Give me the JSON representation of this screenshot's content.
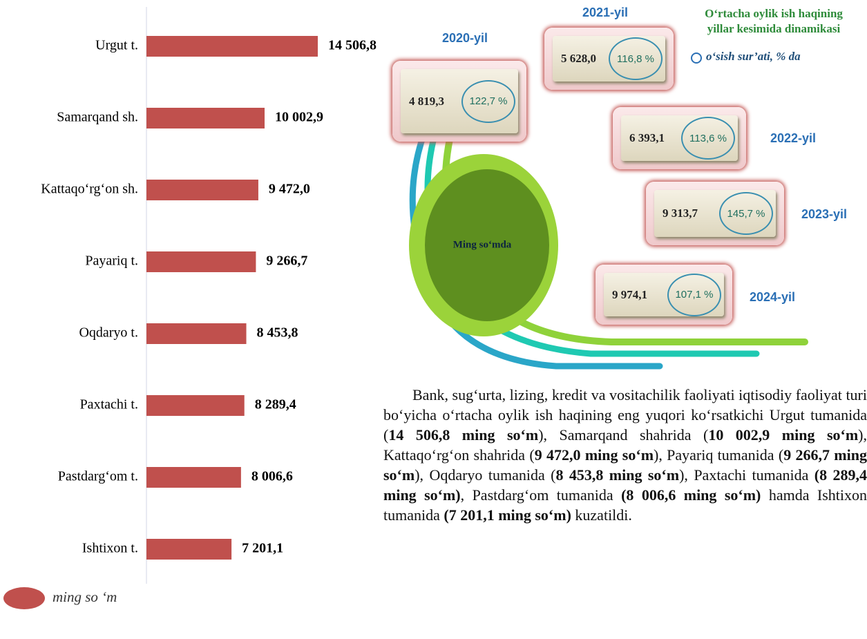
{
  "chart_data": {
    "type": "hbar",
    "categories": [
      "Urgut t.",
      "Samarqand sh.",
      "Kattaqo‘rg‘on sh.",
      "Payariq t.",
      "Oqdaryo t.",
      "Paxtachi t.",
      "Pastdarg‘om t.",
      "Ishtixon t."
    ],
    "series": [
      {
        "name": "ming so ‘m",
        "color": "#c0504d",
        "values": [
          14506.8,
          10002.9,
          9472.0,
          9266.7,
          8453.8,
          8289.4,
          8006.6,
          7201.1
        ],
        "value_labels": [
          "14 506,8",
          "10 002,9",
          "9 472,0",
          "9 266,7",
          "8 453,8",
          "8 289,4",
          "8 006,6",
          "7 201,1"
        ]
      }
    ],
    "legend": "bottom-left"
  },
  "infographic": {
    "title": [
      "O‘rtacha oylik ish haqining",
      "yillar kesimida dinamikasi"
    ],
    "legend": "o‘sish sur’ati, % da",
    "center": "Ming so‘mda",
    "items": [
      {
        "year": "2020-yil",
        "value": "4 819,3",
        "rate": "122,7 %"
      },
      {
        "year": "2021-yil",
        "value": "5 628,0",
        "rate": "116,8 %"
      },
      {
        "year": "2022-yil",
        "value": "6 393,1",
        "rate": "113,6 %"
      },
      {
        "year": "2023-yil",
        "value": "9 313,7",
        "rate": "145,7 %"
      },
      {
        "year": "2024-yil",
        "value": "9 974,1",
        "rate": "107,1 %"
      }
    ]
  },
  "paragraph": [
    {
      "text": "Bank, sug‘urta, lizing, kredit va vositachilik faoliyati iqtisodiy faoliyat turi bo‘yicha o‘rtacha oylik ish haqining eng yuqori ko‘rsatkichi Urgut tumanida (",
      "bold": false
    },
    {
      "text": "14 506,8 ming so‘m",
      "bold": true
    },
    {
      "text": "), Samarqand shahrida (",
      "bold": false
    },
    {
      "text": "10 002,9 ming so‘m",
      "bold": true
    },
    {
      "text": "), Kattaqo‘rg‘on shahrida (",
      "bold": false
    },
    {
      "text": "9 472,0 ming so‘m",
      "bold": true
    },
    {
      "text": "), Payariq tumanida (",
      "bold": false
    },
    {
      "text": "9 266,7 ming so‘m",
      "bold": true
    },
    {
      "text": "),  Oqdaryo tumanida (",
      "bold": false
    },
    {
      "text": "8 453,8 ming so‘m",
      "bold": true
    },
    {
      "text": "), Paxtachi tumanida ",
      "bold": false
    },
    {
      "text": "(8 289,4 ming so‘m)",
      "bold": true
    },
    {
      "text": ", Pastdarg‘om tumanida ",
      "bold": false
    },
    {
      "text": "(8 006,6 ming so‘m)",
      "bold": true
    },
    {
      "text": " hamda Ishtixon tumanida ",
      "bold": false
    },
    {
      "text": "(7 201,1 ming so‘m)",
      "bold": true
    },
    {
      "text": " kuzatildi.",
      "bold": false
    }
  ]
}
